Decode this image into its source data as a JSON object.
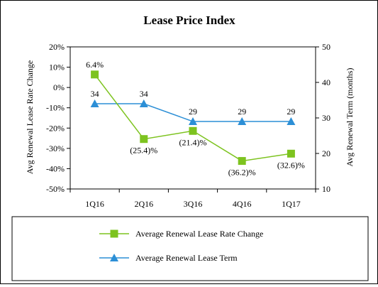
{
  "chart_data": {
    "type": "line",
    "title": "Lease Price Index",
    "categories": [
      "1Q16",
      "2Q16",
      "3Q16",
      "4Q16",
      "1Q17"
    ],
    "left_axis": {
      "label": "Avg Renewal Lease Rate Change",
      "range": [
        -50,
        20
      ],
      "ticks": [
        20,
        10,
        0,
        -10,
        -20,
        -30,
        -40,
        -50
      ],
      "tick_labels": [
        "20%",
        "10%",
        "0%",
        "-10%",
        "-20%",
        "-30%",
        "-40%",
        "-50%"
      ]
    },
    "right_axis": {
      "label": "Avg Renewal Term (months)",
      "range": [
        10,
        50
      ],
      "ticks": [
        50,
        40,
        30,
        20,
        10
      ],
      "tick_labels": [
        "50",
        "40",
        "30",
        "20",
        "10"
      ]
    },
    "series": [
      {
        "name": "Average Renewal Lease Rate Change",
        "axis": "left",
        "color": "#7dc31f",
        "marker": "square",
        "values": [
          6.4,
          -25.4,
          -21.4,
          -36.2,
          -32.6
        ],
        "labels": [
          "6.4%",
          "(25.4)%",
          "(21.4)%",
          "(36.2)%",
          "(32.6)%"
        ]
      },
      {
        "name": "Average Renewal Lease Term",
        "axis": "right",
        "color": "#2c8fd6",
        "marker": "triangle",
        "values": [
          34,
          34,
          29,
          29,
          29
        ],
        "labels": [
          "34",
          "34",
          "29",
          "29",
          "29"
        ]
      }
    ],
    "grid": false,
    "legend_position": "bottom"
  }
}
